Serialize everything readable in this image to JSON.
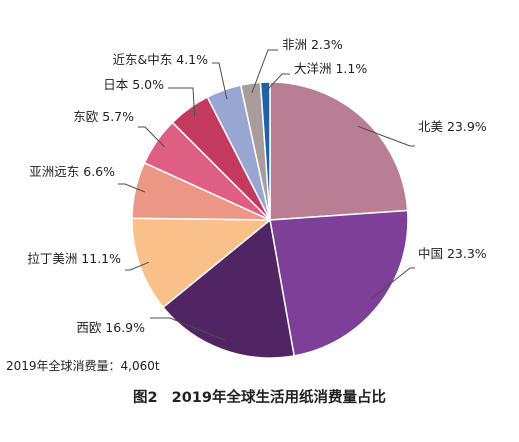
{
  "chart_data": {
    "type": "pie",
    "start_angle_deg": 0,
    "direction": "clockwise",
    "slices": [
      {
        "name": "北美",
        "value": 23.9,
        "label": "北美 23.9%",
        "color": "#b97e93"
      },
      {
        "name": "中国",
        "value": 23.3,
        "label": "中国 23.3%",
        "color": "#7d3f98"
      },
      {
        "name": "西欧",
        "value": 16.9,
        "label": "西欧 16.9%",
        "color": "#512463"
      },
      {
        "name": "拉丁美洲",
        "value": 11.1,
        "label": "拉丁美洲 11.1%",
        "color": "#f9c189"
      },
      {
        "name": "亚洲远东",
        "value": 6.6,
        "label": "亚洲远东 6.6%",
        "color": "#ec9685"
      },
      {
        "name": "东欧",
        "value": 5.7,
        "label": "东欧 5.7%",
        "color": "#de5e84"
      },
      {
        "name": "日本",
        "value": 5.0,
        "label": "日本 5.0%",
        "color": "#c43a5e"
      },
      {
        "name": "近东&中东",
        "value": 4.1,
        "label": "近东&中东 4.1%",
        "color": "#9aa6d2"
      },
      {
        "name": "非洲",
        "value": 2.3,
        "label": "非洲 2.3%",
        "color": "#a89c9c"
      },
      {
        "name": "大洋洲",
        "value": 1.1,
        "label": "大洋洲 1.1%",
        "color": "#1e63a8"
      }
    ],
    "leader_color": "#4d4d4d"
  },
  "note": "2019年全球消费量：4,060t",
  "caption": {
    "number": "图2",
    "text": "2019年全球生活用纸消费量占比"
  }
}
